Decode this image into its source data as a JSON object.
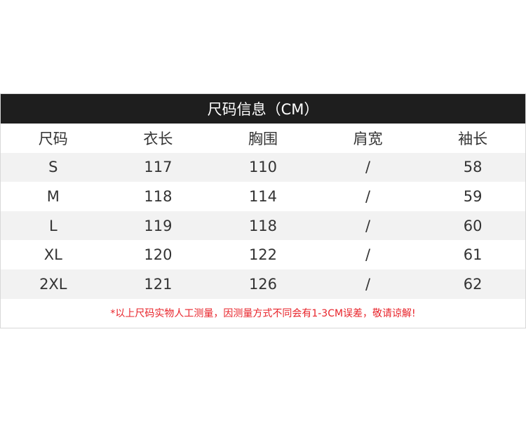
{
  "title": "尺码信息（CM）",
  "headers": [
    "尺码",
    "衣长",
    "胸围",
    "肩宽",
    "袖长"
  ],
  "rows": [
    [
      "S",
      "117",
      "110",
      "/",
      "58"
    ],
    [
      "M",
      "118",
      "114",
      "/",
      "59"
    ],
    [
      "L",
      "119",
      "118",
      "/",
      "60"
    ],
    [
      "XL",
      "120",
      "122",
      "/",
      "61"
    ],
    [
      "2XL",
      "121",
      "126",
      "/",
      "62"
    ]
  ],
  "note": "*以上尺码实物人工测量，因测量方式不同会有1-3CM误差，敬请谅解!",
  "colors": {
    "title_bg": "#1e1e1e",
    "alt_row": "#f2f2f2",
    "note": "#e8232a"
  }
}
